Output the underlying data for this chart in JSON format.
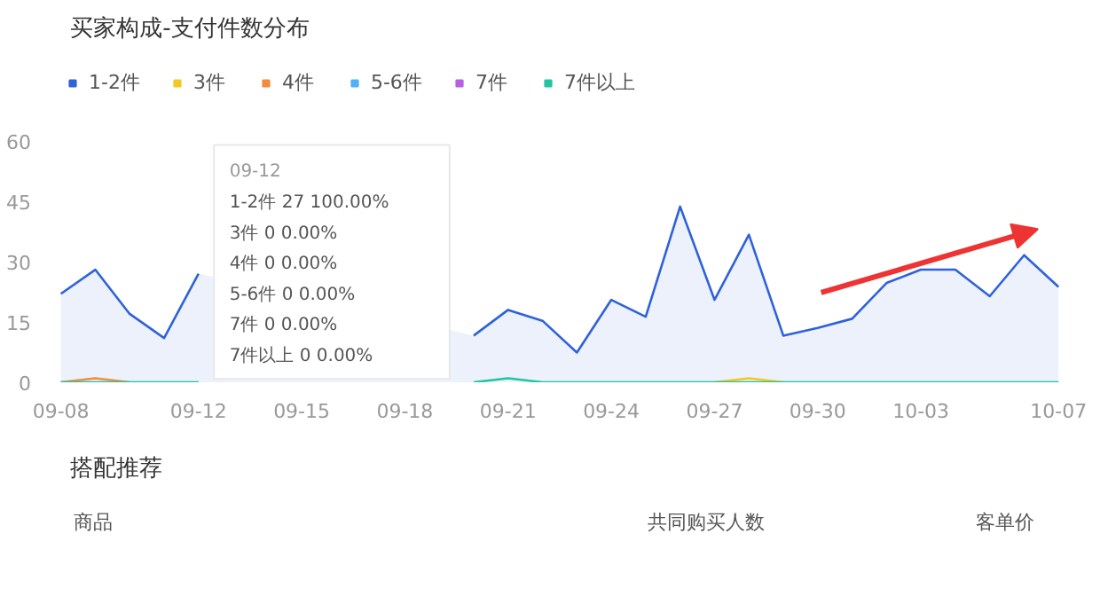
{
  "chart_data": {
    "type": "line",
    "title": "买家构成-支付件数分布",
    "categories": [
      "09-08",
      null,
      null,
      null,
      "09-12",
      null,
      null,
      "09-15",
      null,
      null,
      "09-18",
      null,
      null,
      "09-21",
      null,
      null,
      "09-24",
      null,
      null,
      "09-27",
      null,
      null,
      "09-30",
      null,
      null,
      "10-03",
      null,
      null,
      null,
      "10-07"
    ],
    "series": [
      {
        "name": "1-2件",
        "color": "#2f62d9",
        "type": "area",
        "values": [
          22,
          28,
          17,
          11,
          27,
          null,
          null,
          null,
          null,
          null,
          null,
          null,
          11.6,
          18,
          15.3,
          7.4,
          20.5,
          16.3,
          43.7,
          20.5,
          36.7,
          11.6,
          13.5,
          15.8,
          24.7,
          28,
          28,
          21.4,
          31.6,
          23.7
        ]
      },
      {
        "name": "3件",
        "color": "#f5c721",
        "values": [
          null,
          null,
          null,
          null,
          null,
          null,
          null,
          null,
          null,
          null,
          null,
          null,
          null,
          null,
          null,
          null,
          null,
          null,
          null,
          0,
          1,
          0,
          null,
          null,
          null,
          null,
          null,
          null,
          null,
          null
        ]
      },
      {
        "name": "4件",
        "color": "#f58a3a",
        "values": [
          0,
          1,
          0,
          null,
          null,
          null,
          null,
          null,
          null,
          null,
          null,
          null,
          null,
          null,
          null,
          null,
          null,
          null,
          null,
          null,
          null,
          null,
          null,
          null,
          null,
          null,
          null,
          null,
          null,
          null
        ]
      },
      {
        "name": "5-6件",
        "color": "#4fb1f7",
        "values": [
          null,
          null,
          null,
          null,
          null,
          null,
          null,
          null,
          null,
          null,
          null,
          null,
          null,
          null,
          null,
          null,
          null,
          null,
          null,
          null,
          null,
          null,
          null,
          null,
          null,
          null,
          null,
          null,
          null,
          null
        ]
      },
      {
        "name": "7件",
        "color": "#b760e6",
        "values": [
          null,
          null,
          null,
          null,
          null,
          null,
          null,
          null,
          null,
          null,
          null,
          null,
          null,
          null,
          null,
          null,
          null,
          null,
          null,
          null,
          null,
          null,
          null,
          null,
          null,
          null,
          null,
          null,
          null,
          null
        ]
      },
      {
        "name": "7件以上",
        "color": "#21c4a3",
        "values": [
          0,
          0,
          0,
          0,
          0,
          null,
          null,
          null,
          null,
          null,
          null,
          null,
          0,
          1,
          0,
          0,
          0,
          0,
          0,
          0,
          0,
          0,
          0,
          0,
          0,
          0,
          0,
          0,
          0,
          0
        ]
      }
    ],
    "ylim": [
      0,
      60
    ],
    "yticks": [
      0,
      15,
      30,
      45,
      60
    ],
    "grid": false,
    "legend": "top left",
    "marker": "none",
    "annotations": [
      "09-12",
      "1-2件 27 100.00%",
      "3件 0 0.00%",
      "4件 0 0.00%",
      "5-6件 0 0.00%",
      "7件 0 0.00%",
      "7件以上 0 0.00%",
      "搭配推荐",
      "商品",
      "共同购买人数",
      "客单价"
    ]
  }
}
